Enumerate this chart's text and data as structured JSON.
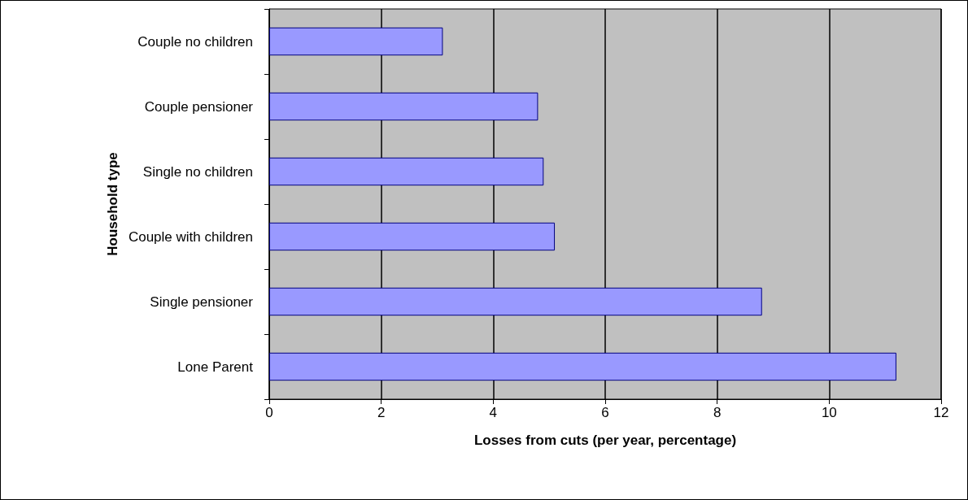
{
  "chart_data": {
    "type": "bar",
    "orientation": "horizontal",
    "xlabel": "Losses from cuts (per year, percentage)",
    "ylabel": "Household type",
    "categories": [
      "Couple no children",
      "Couple pensioner",
      "Single no children",
      "Couple with children",
      "Single pensioner",
      "Lone Parent"
    ],
    "values": [
      3.1,
      4.8,
      4.9,
      5.1,
      8.8,
      11.2
    ],
    "color": "#9999ff",
    "xlim": [
      0,
      12
    ],
    "xticks": [
      0,
      2,
      4,
      6,
      8,
      10,
      12
    ],
    "grid": "x"
  }
}
